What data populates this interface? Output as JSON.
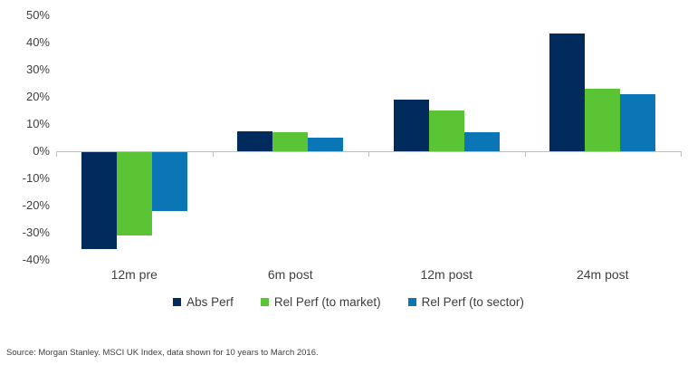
{
  "chart_data": {
    "type": "bar",
    "categories": [
      "12m pre",
      "6m post",
      "12m post",
      "24m post"
    ],
    "series": [
      {
        "name": "Abs Perf",
        "color": "#002b5c",
        "values": [
          -36,
          7.5,
          19,
          43.5
        ]
      },
      {
        "name": "Rel Perf (to market)",
        "color": "#5ac434",
        "values": [
          -31,
          7,
          15,
          23
        ]
      },
      {
        "name": "Rel Perf (to sector)",
        "color": "#0b76b6",
        "values": [
          -22,
          5,
          7,
          21
        ]
      }
    ],
    "title": "",
    "xlabel": "",
    "ylabel": "",
    "ylim": [
      -40,
      50
    ],
    "ytick_step": 10,
    "ytick_labels": [
      "50%",
      "40%",
      "30%",
      "20%",
      "10%",
      "0%",
      "-10%",
      "-20%",
      "-30%",
      "-40%"
    ],
    "grid": false,
    "legend_position": "bottom",
    "axis_line_color": "#bfbfbf",
    "text_color": "#404040"
  },
  "footer": {
    "source": "Source: Morgan Stanley. MSCI UK Index, data shown for 10 years to March 2016."
  }
}
